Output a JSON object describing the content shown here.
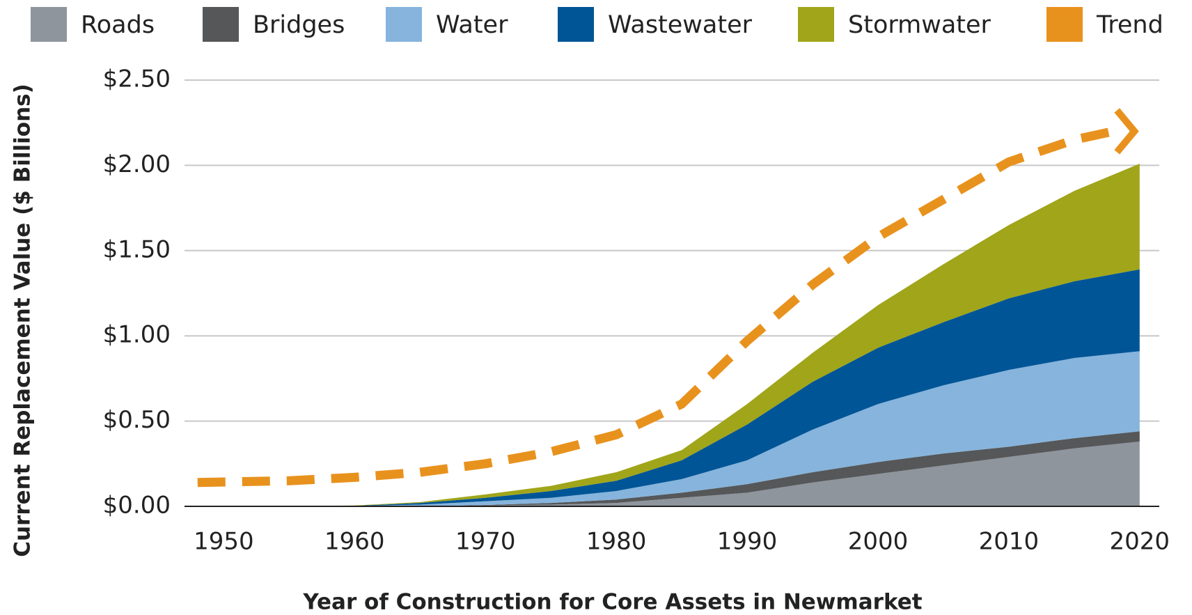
{
  "chart_data": {
    "type": "stacked_area",
    "xlabel": "Year of Construction for Core Assets in Newmarket",
    "ylabel": "Current Replacement Value ($ Billions)",
    "x": [
      1950,
      1955,
      1960,
      1965,
      1970,
      1975,
      1980,
      1985,
      1990,
      1995,
      2000,
      2005,
      2010,
      2015,
      2020
    ],
    "series": [
      {
        "name": "Roads",
        "color": "#8e959c",
        "values": [
          0,
          0,
          0,
          0,
          0.005,
          0.01,
          0.02,
          0.05,
          0.08,
          0.14,
          0.19,
          0.24,
          0.29,
          0.34,
          0.38
        ]
      },
      {
        "name": "Bridges",
        "color": "#555759",
        "values": [
          0,
          0,
          0,
          0,
          0.003,
          0.01,
          0.02,
          0.03,
          0.05,
          0.06,
          0.07,
          0.07,
          0.06,
          0.06,
          0.06
        ]
      },
      {
        "name": "Water",
        "color": "#86b4dc",
        "values": [
          0,
          0,
          0.002,
          0.01,
          0.022,
          0.03,
          0.05,
          0.08,
          0.14,
          0.25,
          0.34,
          0.4,
          0.45,
          0.47,
          0.47
        ]
      },
      {
        "name": "Wastewater",
        "color": "#005596",
        "values": [
          0,
          0,
          0.001,
          0.01,
          0.02,
          0.04,
          0.06,
          0.11,
          0.21,
          0.28,
          0.33,
          0.37,
          0.42,
          0.45,
          0.48
        ]
      },
      {
        "name": "Stormwater",
        "color": "#a0a51a",
        "values": [
          0,
          0,
          0.002,
          0.005,
          0.02,
          0.03,
          0.05,
          0.06,
          0.12,
          0.17,
          0.25,
          0.34,
          0.43,
          0.53,
          0.62
        ]
      }
    ],
    "trend": {
      "name": "Trend",
      "color": "#e8921e",
      "x": [
        1948,
        1955,
        1960,
        1965,
        1970,
        1975,
        1980,
        1985,
        1990,
        1995,
        2000,
        2005,
        2010,
        2015,
        2018
      ],
      "values": [
        0.14,
        0.15,
        0.17,
        0.2,
        0.25,
        0.32,
        0.42,
        0.6,
        0.97,
        1.3,
        1.58,
        1.8,
        2.02,
        2.15,
        2.2
      ]
    },
    "xlim": [
      1947,
      2021.5
    ],
    "xticks": [
      1950,
      1960,
      1970,
      1980,
      1990,
      2000,
      2010,
      2020
    ],
    "ylim": [
      0,
      2.5
    ],
    "yticks": [
      {
        "value": 0,
        "label": "$0.00"
      },
      {
        "value": 0.5,
        "label": "$0.50"
      },
      {
        "value": 1,
        "label": "$1.00"
      },
      {
        "value": 1.5,
        "label": "$1.50"
      },
      {
        "value": 2,
        "label": "$2.00"
      },
      {
        "value": 2.5,
        "label": "$2.50"
      }
    ],
    "grid": true,
    "legend": "top"
  }
}
